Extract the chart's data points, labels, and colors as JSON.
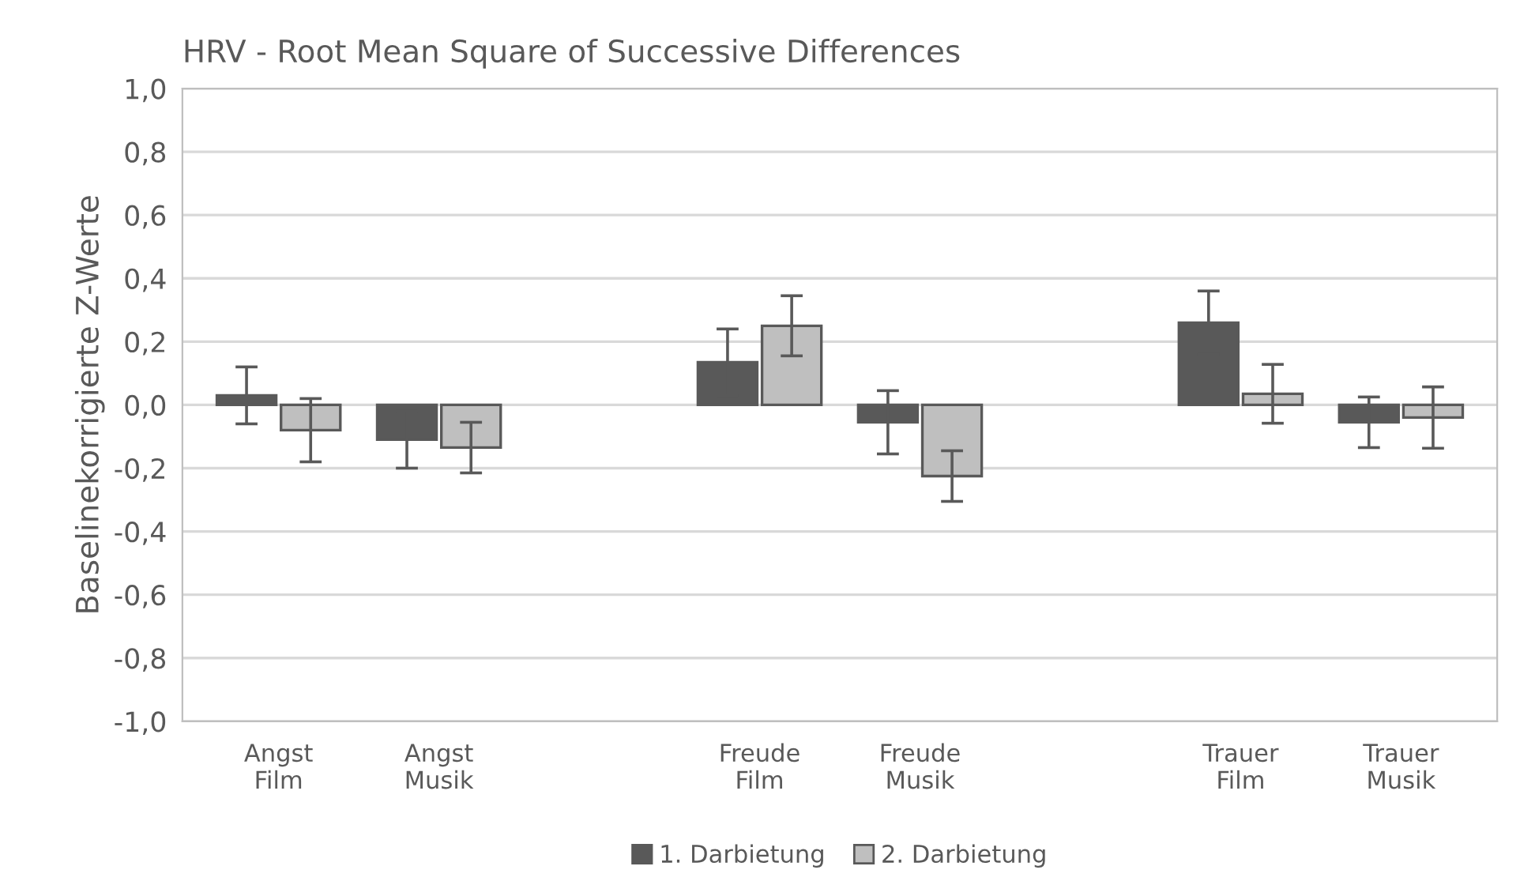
{
  "chart_data": {
    "type": "bar",
    "title": "HRV - Root Mean Square of Successive Differences",
    "ylabel": "Baselinekorrigierte Z-Werte",
    "categories": [
      "Angst\nFilm",
      "Angst\nMusik",
      null,
      "Freude\nFilm",
      "Freude\nMusik",
      null,
      "Trauer\nFilm",
      "Trauer\nMusik"
    ],
    "series": [
      {
        "name": "1. Darbietung",
        "color": "#595959",
        "values": [
          0.03,
          -0.11,
          null,
          0.135,
          -0.055,
          null,
          0.26,
          -0.055
        ],
        "errors": [
          0.09,
          0.09,
          null,
          0.105,
          0.1,
          null,
          0.1,
          0.08
        ]
      },
      {
        "name": "2. Darbietung",
        "color": "#bfbfbf",
        "values": [
          -0.08,
          -0.135,
          null,
          0.25,
          -0.225,
          null,
          0.035,
          -0.04
        ],
        "errors": [
          0.1,
          0.08,
          null,
          0.095,
          0.08,
          null,
          0.093,
          0.097
        ]
      }
    ],
    "ylim": [
      -1.0,
      1.0
    ],
    "yticks": [
      {
        "value": -1.0,
        "label": "-1,0"
      },
      {
        "value": -0.8,
        "label": "-0,8"
      },
      {
        "value": -0.6,
        "label": "-0,6"
      },
      {
        "value": -0.4,
        "label": "-0,4"
      },
      {
        "value": -0.2,
        "label": "-0,2"
      },
      {
        "value": 0.0,
        "label": "0,0"
      },
      {
        "value": 0.2,
        "label": "0,2"
      },
      {
        "value": 0.4,
        "label": "0,4"
      },
      {
        "value": 0.6,
        "label": "0,6"
      },
      {
        "value": 0.8,
        "label": "0,8"
      },
      {
        "value": 1.0,
        "label": "1,0"
      }
    ],
    "grid": "y",
    "legend": "bottom"
  }
}
